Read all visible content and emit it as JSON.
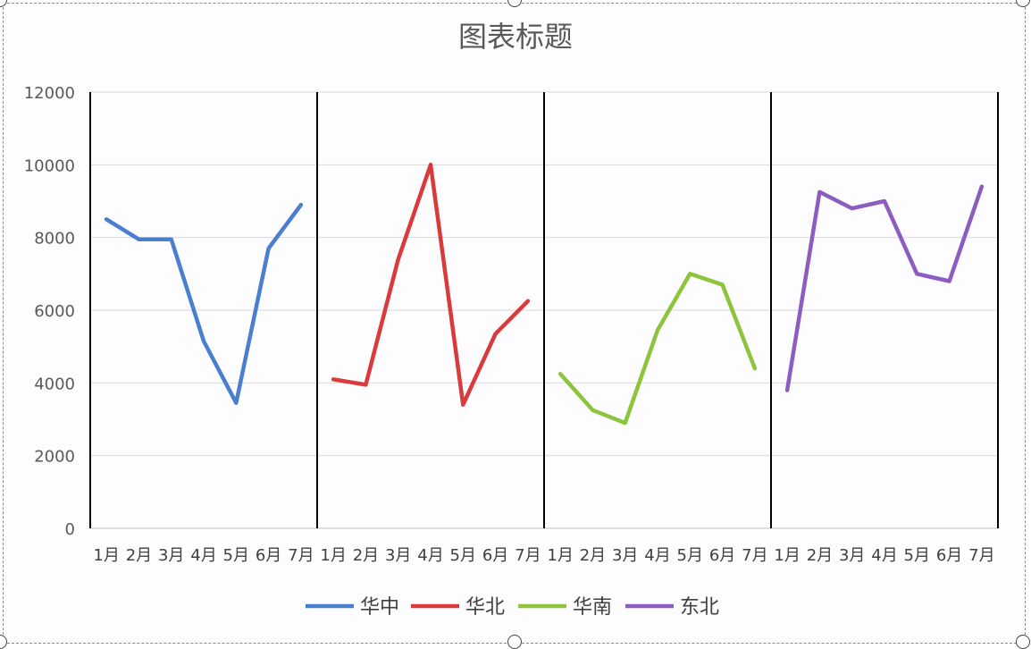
{
  "chart_data": {
    "type": "line",
    "title": "图表标题",
    "xlabel": "",
    "ylabel": "",
    "ylim": [
      0,
      12000
    ],
    "yticks": [
      0,
      2000,
      4000,
      6000,
      8000,
      10000,
      12000
    ],
    "grid": true,
    "legend_position": "bottom",
    "categories": [
      "1月",
      "2月",
      "3月",
      "4月",
      "5月",
      "6月",
      "7月"
    ],
    "series": [
      {
        "name": "华中",
        "color": "#4a7fd0",
        "values": [
          8500,
          7950,
          7950,
          5150,
          3450,
          7700,
          8900
        ]
      },
      {
        "name": "华北",
        "color": "#d93a3a",
        "values": [
          4100,
          3950,
          7400,
          10000,
          3400,
          5350,
          6250
        ]
      },
      {
        "name": "华南",
        "color": "#8cc43c",
        "values": [
          4250,
          3250,
          2900,
          5450,
          7000,
          6700,
          4400
        ]
      },
      {
        "name": "东北",
        "color": "#8c5cc0",
        "values": [
          3800,
          9250,
          8800,
          9000,
          7000,
          6800,
          9400
        ]
      }
    ]
  }
}
